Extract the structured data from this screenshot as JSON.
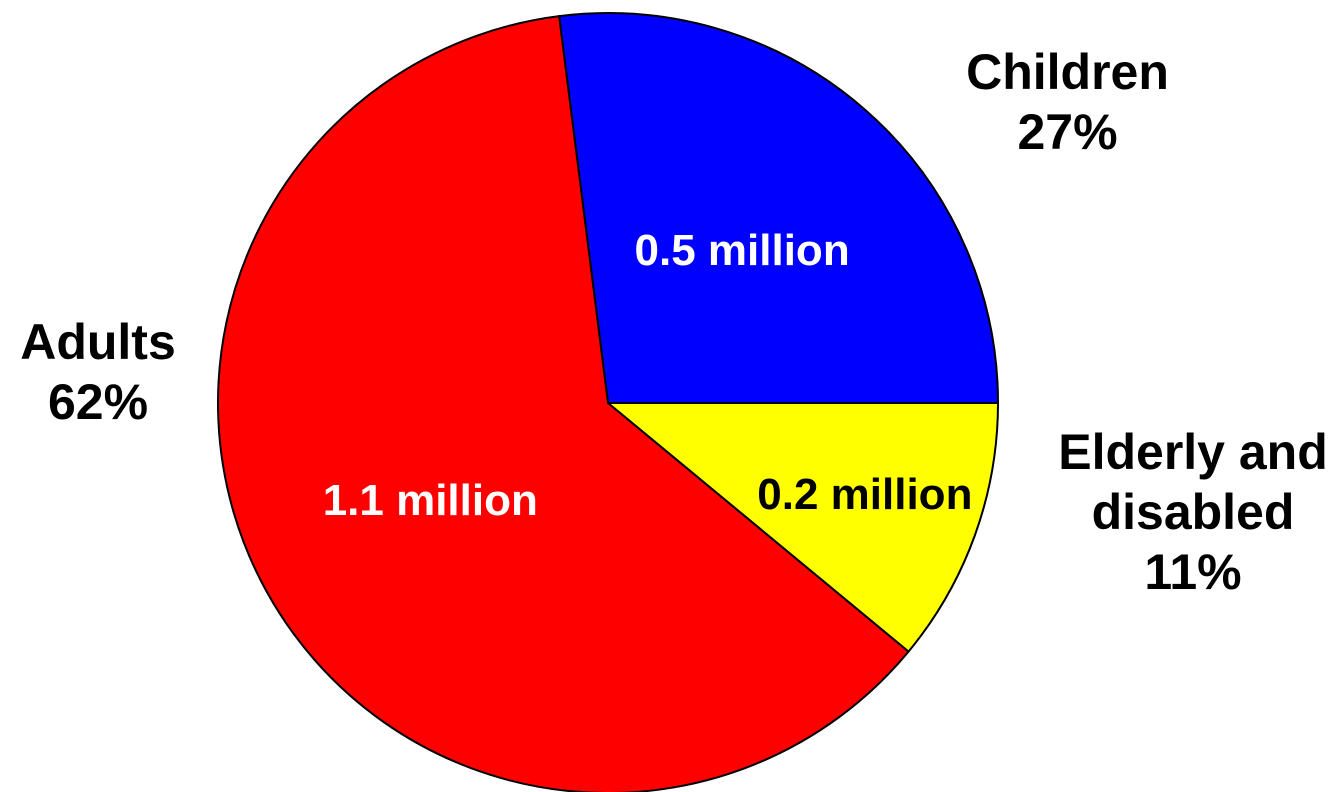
{
  "chart_data": {
    "type": "pie",
    "title": "",
    "slices": [
      {
        "category": "Children",
        "percent_label": "27%",
        "percent": 27,
        "value_label": "0.5 million",
        "value": 0.5,
        "color": "#0000ff",
        "label_color": "#ffffff"
      },
      {
        "category": "Elderly and disabled",
        "category_lines": [
          "Elderly and",
          "disabled"
        ],
        "percent_label": "11%",
        "percent": 11,
        "value_label": "0.2 million",
        "value": 0.2,
        "color": "#ffff00",
        "label_color": "#000000"
      },
      {
        "category": "Adults",
        "percent_label": "62%",
        "percent": 62,
        "value_label": "1.1 million",
        "value": 1.1,
        "color": "#ff0000",
        "label_color": "#ffffff"
      }
    ],
    "outline_color": "#000000"
  }
}
